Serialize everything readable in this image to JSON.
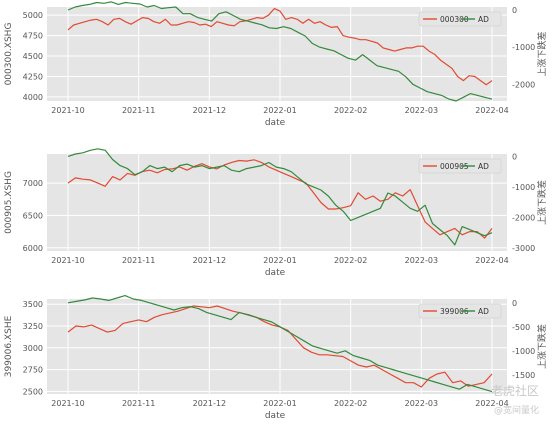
{
  "chart_data": [
    {
      "type": "line",
      "ylabel": "000300.XSHG",
      "y2label": "上涨下跌差",
      "xlabel": "date",
      "x_ticks": [
        "2021-10",
        "2021-11",
        "2021-12",
        "2022-01",
        "2022-02",
        "2022-03",
        "2022-04"
      ],
      "ylim": [
        3950,
        5100
      ],
      "y_ticks": [
        4000,
        4250,
        4500,
        4750,
        5000
      ],
      "y2lim": [
        -2450,
        80
      ],
      "y2_ticks": [
        0,
        -1000,
        -2000
      ],
      "legend": [
        "000300",
        "AD"
      ],
      "legend_position": "top-right",
      "series": [
        {
          "name": "000300",
          "axis": "left",
          "color": "#e24a33",
          "values": [
            4820,
            4880,
            4900,
            4920,
            4940,
            4950,
            4920,
            4880,
            4950,
            4960,
            4920,
            4890,
            4930,
            4970,
            4960,
            4920,
            4900,
            4950,
            4880,
            4880,
            4900,
            4920,
            4910,
            4880,
            4890,
            4860,
            4920,
            4900,
            4880,
            4870,
            4920,
            4930,
            4950,
            4970,
            4960,
            5000,
            5080,
            5050,
            4950,
            4970,
            4950,
            4900,
            4950,
            4900,
            4920,
            4880,
            4850,
            4860,
            4750,
            4730,
            4720,
            4700,
            4700,
            4680,
            4660,
            4600,
            4580,
            4560,
            4580,
            4600,
            4600,
            4620,
            4620,
            4560,
            4520,
            4450,
            4400,
            4350,
            4250,
            4200,
            4260,
            4250,
            4200,
            4150,
            4200
          ]
        },
        {
          "name": "AD",
          "axis": "right",
          "color": "#348a3c",
          "values": [
            0,
            80,
            120,
            150,
            200,
            180,
            220,
            150,
            200,
            180,
            160,
            80,
            120,
            40,
            60,
            80,
            -100,
            -100,
            -200,
            -250,
            -300,
            -100,
            -50,
            -150,
            -250,
            -300,
            -350,
            -400,
            -480,
            -500,
            -450,
            -500,
            -600,
            -700,
            -900,
            -1000,
            -1050,
            -1100,
            -1200,
            -1300,
            -1350,
            -1200,
            -1350,
            -1500,
            -1550,
            -1600,
            -1650,
            -1800,
            -2000,
            -2100,
            -2200,
            -2250,
            -2300,
            -2400,
            -2450,
            -2350,
            -2250,
            -2300,
            -2350,
            -2400
          ]
        }
      ]
    },
    {
      "type": "line",
      "ylabel": "000905.XSHG",
      "y2label": "上涨下跌差",
      "xlabel": "date",
      "x_ticks": [
        "2021-10",
        "2021-11",
        "2021-12",
        "2022-01",
        "2022-02",
        "2022-03",
        "2022-04"
      ],
      "ylim": [
        5950,
        7450
      ],
      "y_ticks": [
        6000,
        6500,
        7000
      ],
      "y2lim": [
        -3100,
        80
      ],
      "y2_ticks": [
        0,
        -1000,
        -2000,
        -3000
      ],
      "legend": [
        "000905",
        "AD"
      ],
      "legend_position": "top-right",
      "series": [
        {
          "name": "000905",
          "axis": "left",
          "color": "#e24a33",
          "values": [
            7000,
            7080,
            7060,
            7050,
            7000,
            6950,
            7100,
            7050,
            7150,
            7120,
            7180,
            7200,
            7160,
            7210,
            7220,
            7250,
            7200,
            7260,
            7300,
            7250,
            7220,
            7280,
            7320,
            7350,
            7340,
            7360,
            7320,
            7250,
            7200,
            7150,
            7100,
            7050,
            7000,
            6850,
            6700,
            6600,
            6600,
            6620,
            6650,
            6850,
            6750,
            6800,
            6720,
            6750,
            6850,
            6800,
            6900,
            6650,
            6400,
            6300,
            6200,
            6250,
            6300,
            6200,
            6250,
            6250,
            6150,
            6300
          ]
        },
        {
          "name": "AD",
          "axis": "right",
          "color": "#348a3c",
          "values": [
            0,
            80,
            120,
            200,
            250,
            200,
            -100,
            -300,
            -400,
            -600,
            -500,
            -300,
            -400,
            -350,
            -500,
            -300,
            -250,
            -350,
            -300,
            -400,
            -350,
            -300,
            -450,
            -500,
            -400,
            -350,
            -300,
            -200,
            -350,
            -400,
            -500,
            -700,
            -900,
            -1000,
            -1100,
            -1300,
            -1600,
            -1800,
            -2100,
            -2000,
            -1900,
            -1800,
            -1700,
            -1200,
            -1300,
            -1500,
            -1700,
            -1800,
            -1600,
            -2200,
            -2400,
            -2600,
            -2900,
            -2300,
            -2400,
            -2500,
            -2600,
            -2500
          ]
        }
      ]
    },
    {
      "type": "line",
      "ylabel": "399006.XSHE",
      "y2label": "上涨下跌差",
      "xlabel": "date",
      "x_ticks": [
        "2021-10",
        "2021-11",
        "2021-12",
        "2022-01",
        "2022-02",
        "2022-03",
        "2022-04"
      ],
      "ylim": [
        2470,
        3560
      ],
      "y_ticks": [
        2500,
        2750,
        3000,
        3250,
        3500
      ],
      "y2lim": [
        -1900,
        80
      ],
      "y2_ticks": [
        0,
        -500,
        -1000,
        -1500
      ],
      "y2_tick_labels": [
        "0",
        "-500",
        "-1000",
        "-1500"
      ],
      "legend": [
        "399006",
        "AD"
      ],
      "legend_position": "top-right",
      "series": [
        {
          "name": "399006",
          "axis": "left",
          "color": "#e24a33",
          "values": [
            3180,
            3250,
            3240,
            3260,
            3220,
            3180,
            3200,
            3280,
            3300,
            3320,
            3300,
            3350,
            3380,
            3400,
            3420,
            3450,
            3480,
            3470,
            3460,
            3480,
            3450,
            3420,
            3400,
            3380,
            3350,
            3300,
            3260,
            3240,
            3200,
            3100,
            3000,
            2950,
            2920,
            2920,
            2910,
            2900,
            2850,
            2800,
            2780,
            2800,
            2750,
            2700,
            2650,
            2600,
            2600,
            2550,
            2650,
            2700,
            2720,
            2600,
            2620,
            2560,
            2580,
            2600,
            2700
          ]
        },
        {
          "name": "AD",
          "axis": "right",
          "color": "#348a3c",
          "values": [
            0,
            30,
            60,
            100,
            80,
            50,
            100,
            150,
            80,
            50,
            0,
            -50,
            -100,
            -150,
            -100,
            -80,
            -120,
            -200,
            -250,
            -300,
            -350,
            -200,
            -250,
            -300,
            -350,
            -400,
            -500,
            -600,
            -700,
            -800,
            -900,
            -950,
            -1000,
            -1050,
            -1000,
            -1100,
            -1150,
            -1200,
            -1300,
            -1350,
            -1400,
            -1450,
            -1500,
            -1550,
            -1600,
            -1650,
            -1700,
            -1750,
            -1800,
            -1700,
            -1750,
            -1800,
            -1850
          ]
        }
      ]
    }
  ],
  "watermark": {
    "line1": "老虎社区",
    "line2": "@宽间量化"
  }
}
